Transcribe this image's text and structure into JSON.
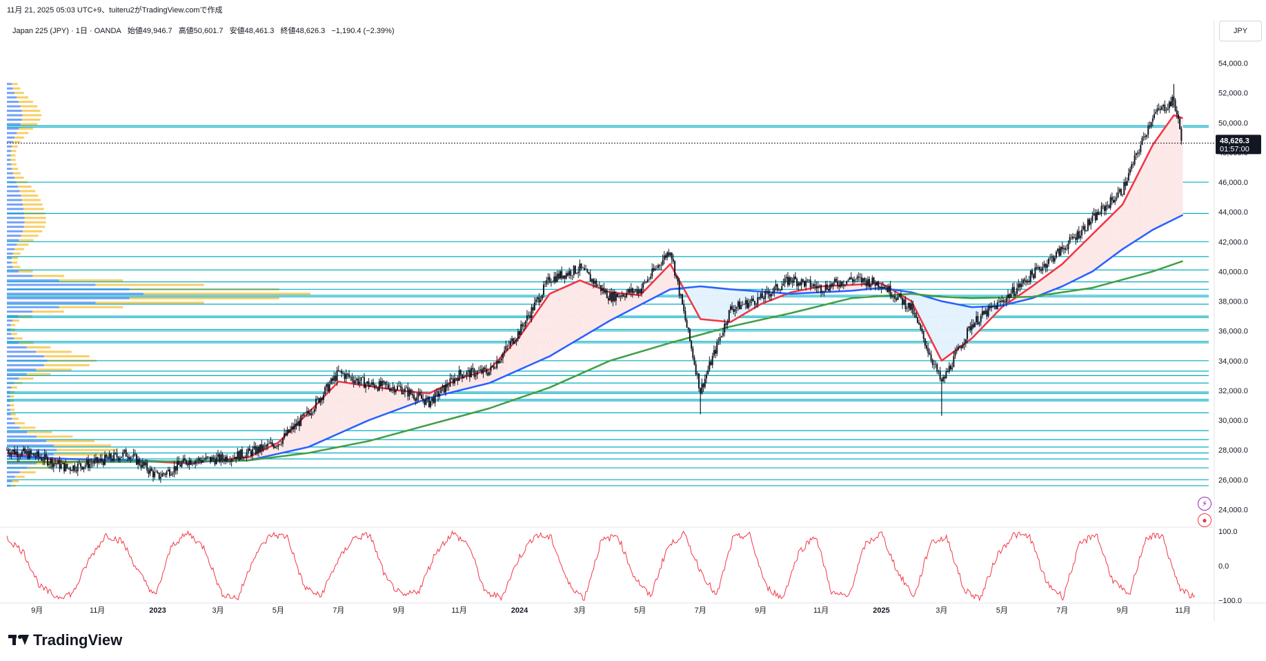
{
  "caption": "11月 21, 2025 05:03 UTC+9、tuiteru2がTradingView.comで作成",
  "legend": {
    "symbol": "Japan 225 (JPY) · 1日 · OANDA",
    "open": "始値49,946.7",
    "high": "高値50,601.7",
    "low": "安値48,461.3",
    "close": "終値48,626.3",
    "change": "−1,190.4 (−2.39%)"
  },
  "currency": "JPY",
  "last_price_label": "48,626.3",
  "countdown_label": "01:57:00",
  "brand": "TradingView",
  "icons": {
    "bolt": "lightning-icon",
    "record": "record-icon"
  },
  "colors": {
    "candle": "#131722",
    "ma_short": "#f23645",
    "ma_mid": "#2962ff",
    "ma_long": "#43a047",
    "level_line": "#00acc1",
    "vp_up": "#5b8ff9",
    "vp_down": "#f6c23e",
    "oscillator": "#f23645",
    "fill_up": "#fde8e8",
    "fill_down": "#e3f2fd"
  },
  "chart_data": [
    {
      "type": "candlestick",
      "title": "",
      "ylabel": "",
      "ylim": [
        23000,
        55000
      ],
      "y_ticks": [
        "54,000.0",
        "52,000.0",
        "50,000.0",
        "48,000.0",
        "46,000.0",
        "44,000.0",
        "42,000.0",
        "40,000.0",
        "38,000.0",
        "36,000.0",
        "34,000.0",
        "32,000.0",
        "30,000.0",
        "28,000.0",
        "26,000.0",
        "24,000.0"
      ],
      "x_labels": [
        "9月",
        "11月",
        "2023",
        "3月",
        "5月",
        "7月",
        "9月",
        "11月",
        "2024",
        "3月",
        "5月",
        "7月",
        "9月",
        "11月",
        "2025",
        "3月",
        "5月",
        "7月",
        "9月",
        "11月"
      ],
      "x_tick_months": [
        0,
        2,
        4,
        6,
        8,
        10,
        12,
        14,
        16,
        18,
        20,
        22,
        24,
        26,
        28,
        30,
        32,
        34,
        36,
        38
      ],
      "x_bold_labels": [
        "2023",
        "2024",
        "2025"
      ],
      "approx_close_path": [
        [
          0,
          28000
        ],
        [
          1,
          27600
        ],
        [
          2,
          26800
        ],
        [
          3,
          27200
        ],
        [
          4,
          27800
        ],
        [
          5,
          26200
        ],
        [
          6,
          27300
        ],
        [
          7,
          27400
        ],
        [
          8,
          27800
        ],
        [
          9,
          28500
        ],
        [
          10,
          30500
        ],
        [
          11,
          33200
        ],
        [
          12,
          32400
        ],
        [
          13,
          32200
        ],
        [
          14,
          31200
        ],
        [
          15,
          33100
        ],
        [
          16,
          33300
        ],
        [
          17,
          36000
        ],
        [
          18,
          39500
        ],
        [
          19,
          40200
        ],
        [
          20,
          38300
        ],
        [
          21,
          38800
        ],
        [
          22,
          41500
        ],
        [
          23,
          32000
        ],
        [
          24,
          37500
        ],
        [
          25,
          38200
        ],
        [
          26,
          39500
        ],
        [
          27,
          38900
        ],
        [
          28,
          39500
        ],
        [
          29,
          39200
        ],
        [
          30,
          37500
        ],
        [
          31,
          32500
        ],
        [
          32,
          36500
        ],
        [
          33,
          38000
        ],
        [
          34,
          39800
        ],
        [
          35,
          41500
        ],
        [
          36,
          43500
        ],
        [
          37,
          45500
        ],
        [
          38,
          50500
        ],
        [
          38.7,
          51500
        ],
        [
          39,
          48626
        ]
      ],
      "moving_averages": [
        {
          "name": "",
          "color_key": "ma_short",
          "points": [
            [
              0,
              27800
            ],
            [
              2,
              27200
            ],
            [
              4,
              27300
            ],
            [
              6,
              27100
            ],
            [
              8,
              27500
            ],
            [
              9,
              28500
            ],
            [
              10,
              30500
            ],
            [
              11,
              32600
            ],
            [
              12,
              32300
            ],
            [
              13,
              32000
            ],
            [
              14,
              31800
            ],
            [
              15,
              32800
            ],
            [
              16,
              33400
            ],
            [
              17,
              35600
            ],
            [
              18,
              38500
            ],
            [
              19,
              39400
            ],
            [
              20,
              38600
            ],
            [
              21,
              38400
            ],
            [
              22,
              40500
            ],
            [
              23,
              36800
            ],
            [
              24,
              36600
            ],
            [
              25,
              37800
            ],
            [
              26,
              38600
            ],
            [
              27,
              39000
            ],
            [
              28,
              39100
            ],
            [
              29,
              39200
            ],
            [
              30,
              38000
            ],
            [
              31,
              34000
            ],
            [
              32,
              35500
            ],
            [
              33,
              37600
            ],
            [
              34,
              39000
            ],
            [
              35,
              40500
            ],
            [
              36,
              42500
            ],
            [
              37,
              44500
            ],
            [
              38,
              48500
            ],
            [
              38.7,
              50500
            ],
            [
              39,
              50300
            ]
          ]
        },
        {
          "name": "",
          "color_key": "ma_mid",
          "points": [
            [
              0,
              27600
            ],
            [
              2,
              27400
            ],
            [
              4,
              27300
            ],
            [
              6,
              27200
            ],
            [
              8,
              27300
            ],
            [
              10,
              28200
            ],
            [
              12,
              30000
            ],
            [
              14,
              31500
            ],
            [
              16,
              32500
            ],
            [
              18,
              34300
            ],
            [
              20,
              36700
            ],
            [
              22,
              38800
            ],
            [
              23,
              39000
            ],
            [
              24,
              38800
            ],
            [
              26,
              38500
            ],
            [
              28,
              38700
            ],
            [
              29,
              38900
            ],
            [
              30,
              38600
            ],
            [
              31,
              38000
            ],
            [
              32,
              37600
            ],
            [
              33,
              37700
            ],
            [
              34,
              38200
            ],
            [
              35,
              39000
            ],
            [
              36,
              40000
            ],
            [
              37,
              41500
            ],
            [
              38,
              42800
            ],
            [
              39,
              43800
            ]
          ]
        },
        {
          "name": "",
          "color_key": "ma_long",
          "points": [
            [
              0,
              27200
            ],
            [
              4,
              27200
            ],
            [
              8,
              27300
            ],
            [
              10,
              27800
            ],
            [
              12,
              28600
            ],
            [
              14,
              29700
            ],
            [
              16,
              30800
            ],
            [
              18,
              32200
            ],
            [
              20,
              34000
            ],
            [
              22,
              35200
            ],
            [
              24,
              36300
            ],
            [
              26,
              37200
            ],
            [
              28,
              38200
            ],
            [
              30,
              38500
            ],
            [
              31,
              38300
            ],
            [
              32,
              38200
            ],
            [
              34,
              38300
            ],
            [
              36,
              38900
            ],
            [
              38,
              40000
            ],
            [
              39,
              40700
            ]
          ]
        }
      ],
      "horizontal_levels": [
        49800,
        49700,
        46000,
        43900,
        42000,
        41000,
        40100,
        39300,
        38800,
        38400,
        38300,
        37800,
        37000,
        36900,
        36100,
        36000,
        35300,
        35200,
        34000,
        33300,
        33000,
        32500,
        31900,
        31800,
        31400,
        31300,
        30500,
        29300,
        28700,
        28200,
        27800,
        27400,
        26800,
        26000,
        25600
      ],
      "last_price": 48626.3
    },
    {
      "type": "line",
      "title": "",
      "ylim": [
        -100,
        100
      ],
      "y_ticks": [
        "100.0",
        "0.0",
        "−100.0"
      ],
      "description_values_sampled": [
        80,
        40,
        -60,
        -90,
        -80,
        20,
        90,
        70,
        -20,
        -90,
        60,
        95,
        50,
        -80,
        -95,
        30,
        90,
        85,
        -60,
        -90,
        10,
        80,
        90,
        -40,
        -90,
        -70,
        40,
        95,
        60,
        -80,
        -90,
        20,
        90,
        80,
        -50,
        -95,
        70,
        90,
        -30,
        -90,
        50,
        95,
        -10,
        -90,
        80,
        90,
        -60,
        -95,
        40,
        90,
        -80,
        -90,
        60,
        95,
        -20,
        -90,
        70,
        80,
        -70,
        -95,
        30,
        90,
        85,
        -50,
        -90,
        60,
        95,
        -40,
        -90,
        80,
        90,
        -60,
        -95
      ]
    }
  ]
}
